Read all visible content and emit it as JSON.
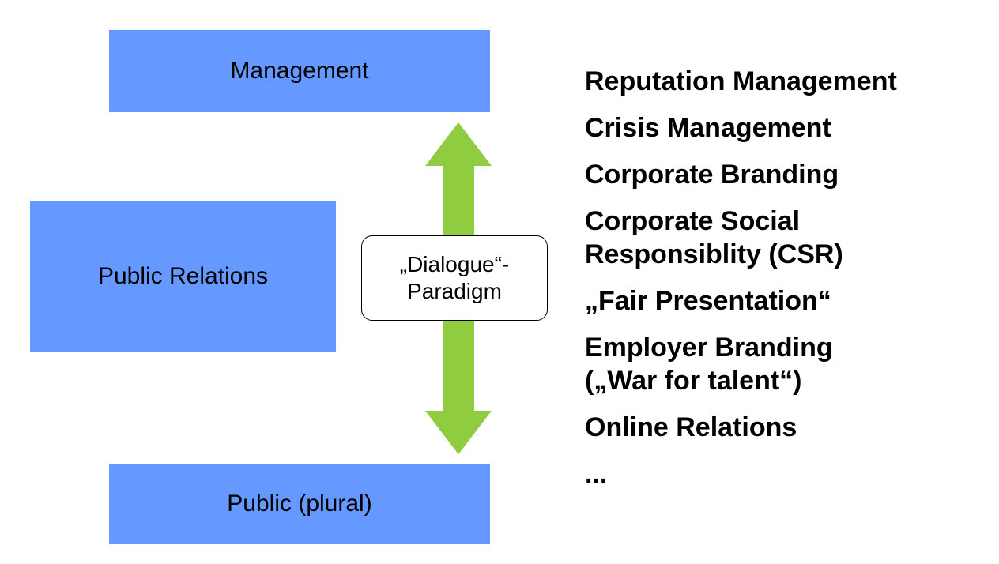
{
  "colors": {
    "box_fill": "#6699ff",
    "arrow_fill": "#8fcc3f",
    "text": "#000000"
  },
  "diagram": {
    "management_label": "Management",
    "public_relations_label": "Public Relations",
    "public_label": "Public (plural)",
    "dialogue_line1": "„Dialogue“-",
    "dialogue_line2": "Paradigm",
    "arrow_icon": "double-headed-vertical-arrow"
  },
  "topics": [
    {
      "lines": [
        "Reputation Management"
      ]
    },
    {
      "lines": [
        "Crisis Management"
      ]
    },
    {
      "lines": [
        "Corporate Branding"
      ]
    },
    {
      "lines": [
        "Corporate Social",
        "Responsiblity (CSR)"
      ]
    },
    {
      "lines": [
        "„Fair Presentation“"
      ]
    },
    {
      "lines": [
        "Employer Branding",
        "(„War for talent“)"
      ]
    },
    {
      "lines": [
        "Online Relations"
      ]
    },
    {
      "lines": [
        "..."
      ]
    }
  ]
}
